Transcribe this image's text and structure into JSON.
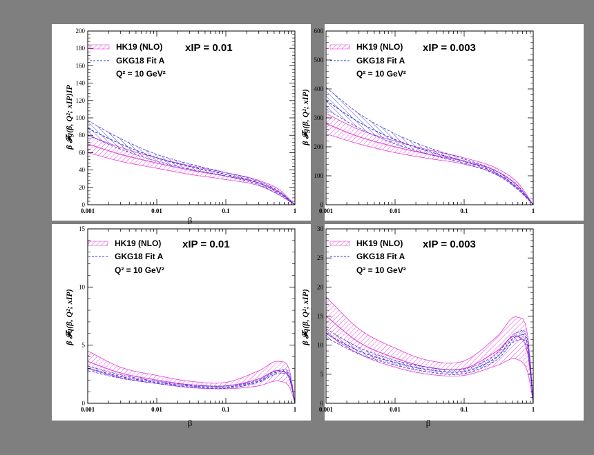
{
  "colors": {
    "hk19": "#e83ad8",
    "gkg18": "#3a3ad8",
    "background": "#7f7f7f",
    "panel": "#ffffff"
  },
  "chart_data": [
    {
      "type": "area",
      "x_scale": "log",
      "xlim": [
        0.001,
        1
      ],
      "ylim": [
        0,
        200
      ],
      "xticks": [
        "0.001",
        "0.01",
        "0.1",
        "1"
      ],
      "yticks": [
        "0",
        "20",
        "40",
        "60",
        "80",
        "100",
        "120",
        "140",
        "160",
        "180",
        "200"
      ],
      "xlabel": "β",
      "ylabel": "β 𝓕g(β, Q²; xIP)IP",
      "legend": [
        "HK19 (NLO)",
        "GKG18 Fit A"
      ],
      "q2_label": "Q² = 10 GeV²",
      "xip_label": "xIP = 0.01",
      "legend_position": "top-left",
      "x": [
        0.001,
        0.003,
        0.01,
        0.03,
        0.1,
        0.3,
        0.6,
        1
      ],
      "series": [
        {
          "name": "HK19 (NLO)",
          "central": [
            70,
            58,
            48,
            40,
            33,
            25,
            14,
            0
          ],
          "lower": [
            60,
            50,
            42,
            35,
            29,
            22,
            11,
            0
          ],
          "upper": [
            80,
            66,
            54,
            45,
            37,
            28,
            17,
            0
          ]
        },
        {
          "name": "GKG18 Fit A",
          "central": [
            88,
            70,
            54,
            44,
            35,
            25,
            13,
            0
          ],
          "lower": [
            80,
            64,
            50,
            41,
            33,
            23,
            11,
            0
          ],
          "upper": [
            97,
            76,
            58,
            47,
            37,
            27,
            15,
            0
          ]
        }
      ]
    },
    {
      "type": "area",
      "x_scale": "log",
      "xlim": [
        0.001,
        1
      ],
      "ylim": [
        0,
        600
      ],
      "xticks": [
        "0.001",
        "0.01",
        "0.1",
        "1"
      ],
      "yticks": [
        "0",
        "100",
        "200",
        "300",
        "400",
        "500",
        "600"
      ],
      "xlabel": "",
      "ylabel": "β 𝓕g(β, Q²; xIP)",
      "legend": [
        "HK19 (NLO)",
        "GKG18 Fit A"
      ],
      "q2_label": "Q² = 10 GeV²",
      "xip_label": "xIP = 0.003",
      "legend_position": "top-left",
      "x": [
        0.001,
        0.003,
        0.01,
        0.03,
        0.1,
        0.3,
        0.6,
        1
      ],
      "series": [
        {
          "name": "HK19 (NLO)",
          "central": [
            280,
            235,
            200,
            175,
            150,
            115,
            65,
            0
          ],
          "lower": [
            245,
            210,
            180,
            160,
            140,
            105,
            55,
            0
          ],
          "upper": [
            315,
            260,
            220,
            190,
            162,
            125,
            75,
            0
          ]
        },
        {
          "name": "GKG18 Fit A",
          "central": [
            360,
            285,
            225,
            185,
            150,
            108,
            58,
            0
          ],
          "lower": [
            330,
            265,
            210,
            175,
            143,
            102,
            52,
            0
          ],
          "upper": [
            405,
            315,
            245,
            198,
            158,
            115,
            64,
            0
          ]
        }
      ]
    },
    {
      "type": "area",
      "x_scale": "log",
      "xlim": [
        0.001,
        1
      ],
      "ylim": [
        0,
        15
      ],
      "xticks": [
        "0.001",
        "0.01",
        "0.1",
        "1"
      ],
      "yticks": [
        "0",
        "5",
        "10",
        "15"
      ],
      "xlabel": "β",
      "ylabel": "β 𝓕q(β, Q²; xIP)",
      "legend": [
        "HK19 (NLO)",
        "GKG18 Fit A"
      ],
      "q2_label": "Q² = 10 GeV²",
      "xip_label": "xIP = 0.01",
      "legend_position": "top-left",
      "x": [
        0.001,
        0.003,
        0.01,
        0.03,
        0.1,
        0.3,
        0.6,
        0.85,
        1
      ],
      "series": [
        {
          "name": "HK19 (NLO)",
          "central": [
            3.6,
            2.6,
            2.0,
            1.6,
            1.5,
            2.1,
            2.8,
            2.0,
            0
          ],
          "lower": [
            3.0,
            2.2,
            1.7,
            1.35,
            1.25,
            1.5,
            1.9,
            1.3,
            0
          ],
          "upper": [
            4.5,
            3.1,
            2.4,
            1.9,
            1.8,
            2.8,
            3.6,
            2.7,
            0
          ]
        },
        {
          "name": "GKG18 Fit A",
          "central": [
            3.0,
            2.3,
            1.8,
            1.5,
            1.4,
            1.9,
            2.7,
            2.2,
            0
          ],
          "lower": [
            2.8,
            2.15,
            1.7,
            1.4,
            1.3,
            1.8,
            2.55,
            2.05,
            0
          ],
          "upper": [
            3.2,
            2.45,
            1.9,
            1.6,
            1.5,
            2.0,
            2.85,
            2.35,
            0
          ]
        }
      ]
    },
    {
      "type": "area",
      "x_scale": "log",
      "xlim": [
        0.001,
        1
      ],
      "ylim": [
        0,
        30
      ],
      "xticks": [
        "0.001",
        "0.01",
        "0.1",
        "1"
      ],
      "yticks": [
        "0",
        "5",
        "10",
        "15",
        "20",
        "25",
        "30"
      ],
      "xlabel": "β",
      "ylabel": "β 𝓕q(β, Q²; xIP)",
      "legend": [
        "HK19 (NLO)",
        "GKG18 Fit A"
      ],
      "q2_label": "Q² = 10 GeV²",
      "xip_label": "xIP = 0.003",
      "legend_position": "top-left",
      "x": [
        0.001,
        0.003,
        0.01,
        0.03,
        0.1,
        0.3,
        0.6,
        0.85,
        1
      ],
      "series": [
        {
          "name": "HK19 (NLO)",
          "central": [
            15,
            10.5,
            7.8,
            6.2,
            6.0,
            9.0,
            11.5,
            8.0,
            0
          ],
          "lower": [
            12,
            8.5,
            6.2,
            5.0,
            4.8,
            6.5,
            7.5,
            5.0,
            0
          ],
          "upper": [
            18.3,
            12.8,
            9.5,
            7.4,
            7.3,
            11.5,
            14.8,
            11.0,
            0
          ]
        },
        {
          "name": "GKG18 Fit A",
          "central": [
            12,
            9.0,
            7.0,
            5.8,
            5.5,
            8.0,
            11.5,
            9.5,
            0
          ],
          "lower": [
            11.3,
            8.5,
            6.6,
            5.4,
            5.1,
            7.5,
            10.8,
            8.8,
            0
          ],
          "upper": [
            12.8,
            9.6,
            7.4,
            6.2,
            5.9,
            8.6,
            12.2,
            10.2,
            0
          ]
        }
      ]
    }
  ]
}
